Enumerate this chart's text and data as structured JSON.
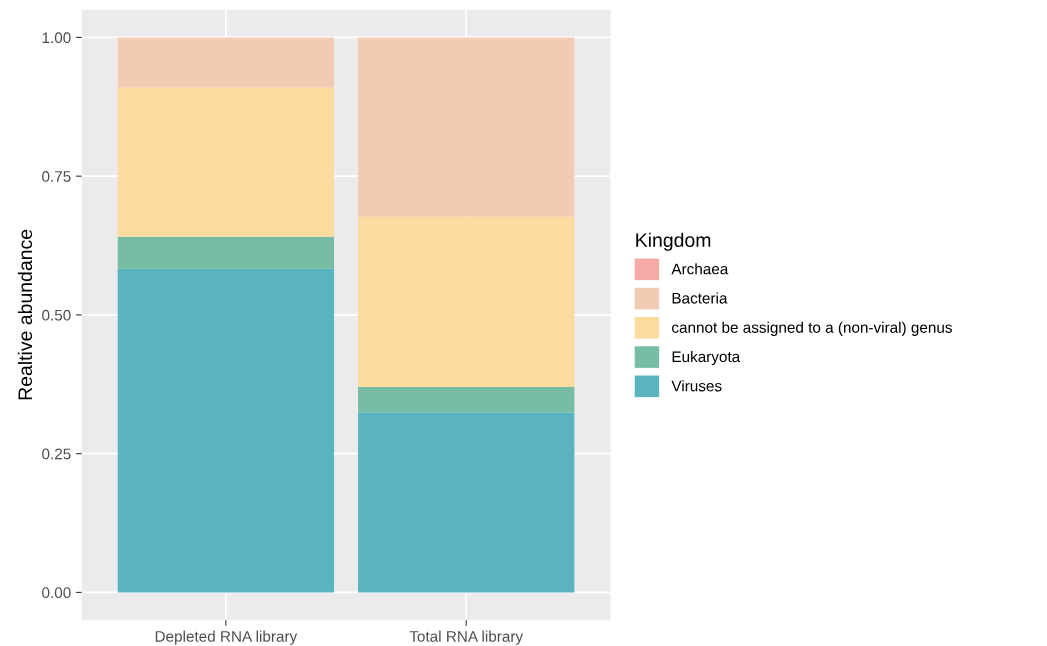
{
  "chart_data": {
    "type": "bar",
    "stacked": true,
    "ylabel": "Realtive abundance",
    "legend_title": "Kingdom",
    "legend": "right",
    "grid": true,
    "categories": [
      "Depleted RNA library",
      "Total RNA library"
    ],
    "series": [
      {
        "name": "Viruses",
        "color": "#5ab4c0",
        "values": [
          0.583,
          0.324
        ]
      },
      {
        "name": "Eukaryota",
        "color": "#77bca4",
        "values": [
          0.058,
          0.046
        ]
      },
      {
        "name": "cannot be assigned to a (non-viral) genus",
        "color": "#fcdb9e",
        "values": [
          0.269,
          0.307
        ]
      },
      {
        "name": "Bacteria",
        "color": "#f3cbb3",
        "values": [
          0.09,
          0.323
        ]
      },
      {
        "name": "Archaea",
        "color": "#f5aaa5",
        "values": [
          0,
          null
        ]
      }
    ],
    "ylim": [
      -0.05,
      1.05
    ],
    "yticks": [
      {
        "value": 0,
        "label": "0.00"
      },
      {
        "value": 0.25,
        "label": "0.25"
      },
      {
        "value": 0.5,
        "label": "0.50"
      },
      {
        "value": 0.75,
        "label": "0.75"
      },
      {
        "value": 1,
        "label": "1.00"
      }
    ]
  }
}
